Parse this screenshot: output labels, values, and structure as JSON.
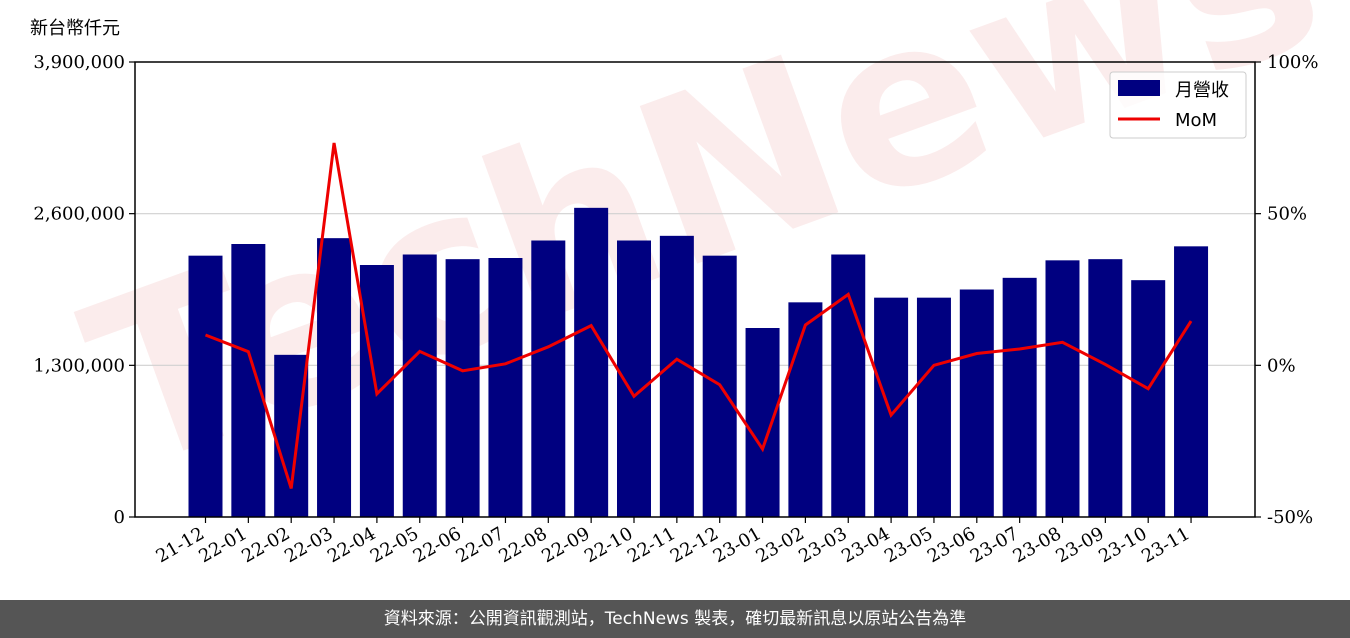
{
  "unit_label": "新台幣仟元",
  "watermark": "TechNews",
  "footer_text": "資料來源：公開資訊觀測站，TechNews 製表，確切最新訊息以原站公告為準",
  "chart_data": {
    "type": "bar",
    "categories": [
      "21-12",
      "22-01",
      "22-02",
      "22-03",
      "22-04",
      "22-05",
      "22-06",
      "22-07",
      "22-08",
      "22-09",
      "22-10",
      "22-11",
      "22-12",
      "23-01",
      "23-02",
      "23-03",
      "23-04",
      "23-05",
      "23-06",
      "23-07",
      "23-08",
      "23-09",
      "23-10",
      "23-11"
    ],
    "series": [
      {
        "name": "月營收",
        "kind": "bar",
        "axis": "left",
        "color": "#000080",
        "values": [
          2240000,
          2340000,
          1390000,
          2390000,
          2160000,
          2250000,
          2210000,
          2220000,
          2370000,
          2650000,
          2370000,
          2410000,
          2240000,
          1620000,
          1840000,
          2250000,
          1880000,
          1880000,
          1950000,
          2050000,
          2200000,
          2210000,
          2030000,
          2320000
        ]
      },
      {
        "name": "MoM",
        "kind": "line",
        "axis": "right",
        "color": "#ee0000",
        "values": [
          10,
          4.5,
          -40.6,
          73.3,
          -9.4,
          4.6,
          -1.8,
          0.5,
          6.1,
          13.1,
          -10.2,
          2,
          -6.4,
          -27.6,
          13.3,
          23.4,
          -16.4,
          0,
          3.9,
          5.4,
          7.6,
          0.3,
          -7.7,
          14.6
        ]
      }
    ],
    "y_left": {
      "min": 0,
      "max": 3900000,
      "ticks": [
        0,
        1300000,
        2600000,
        3900000
      ],
      "tick_labels": [
        "0",
        "1,300,000",
        "2,600,000",
        "3,900,000"
      ]
    },
    "y_right": {
      "min": -50,
      "max": 100,
      "ticks": [
        -50,
        0,
        50,
        100
      ],
      "tick_labels": [
        "-50%",
        "0%",
        "50%",
        "100%"
      ]
    },
    "grid": "horizontal",
    "legend": {
      "position": "top-right",
      "entries": [
        "月營收",
        "MoM"
      ]
    }
  }
}
